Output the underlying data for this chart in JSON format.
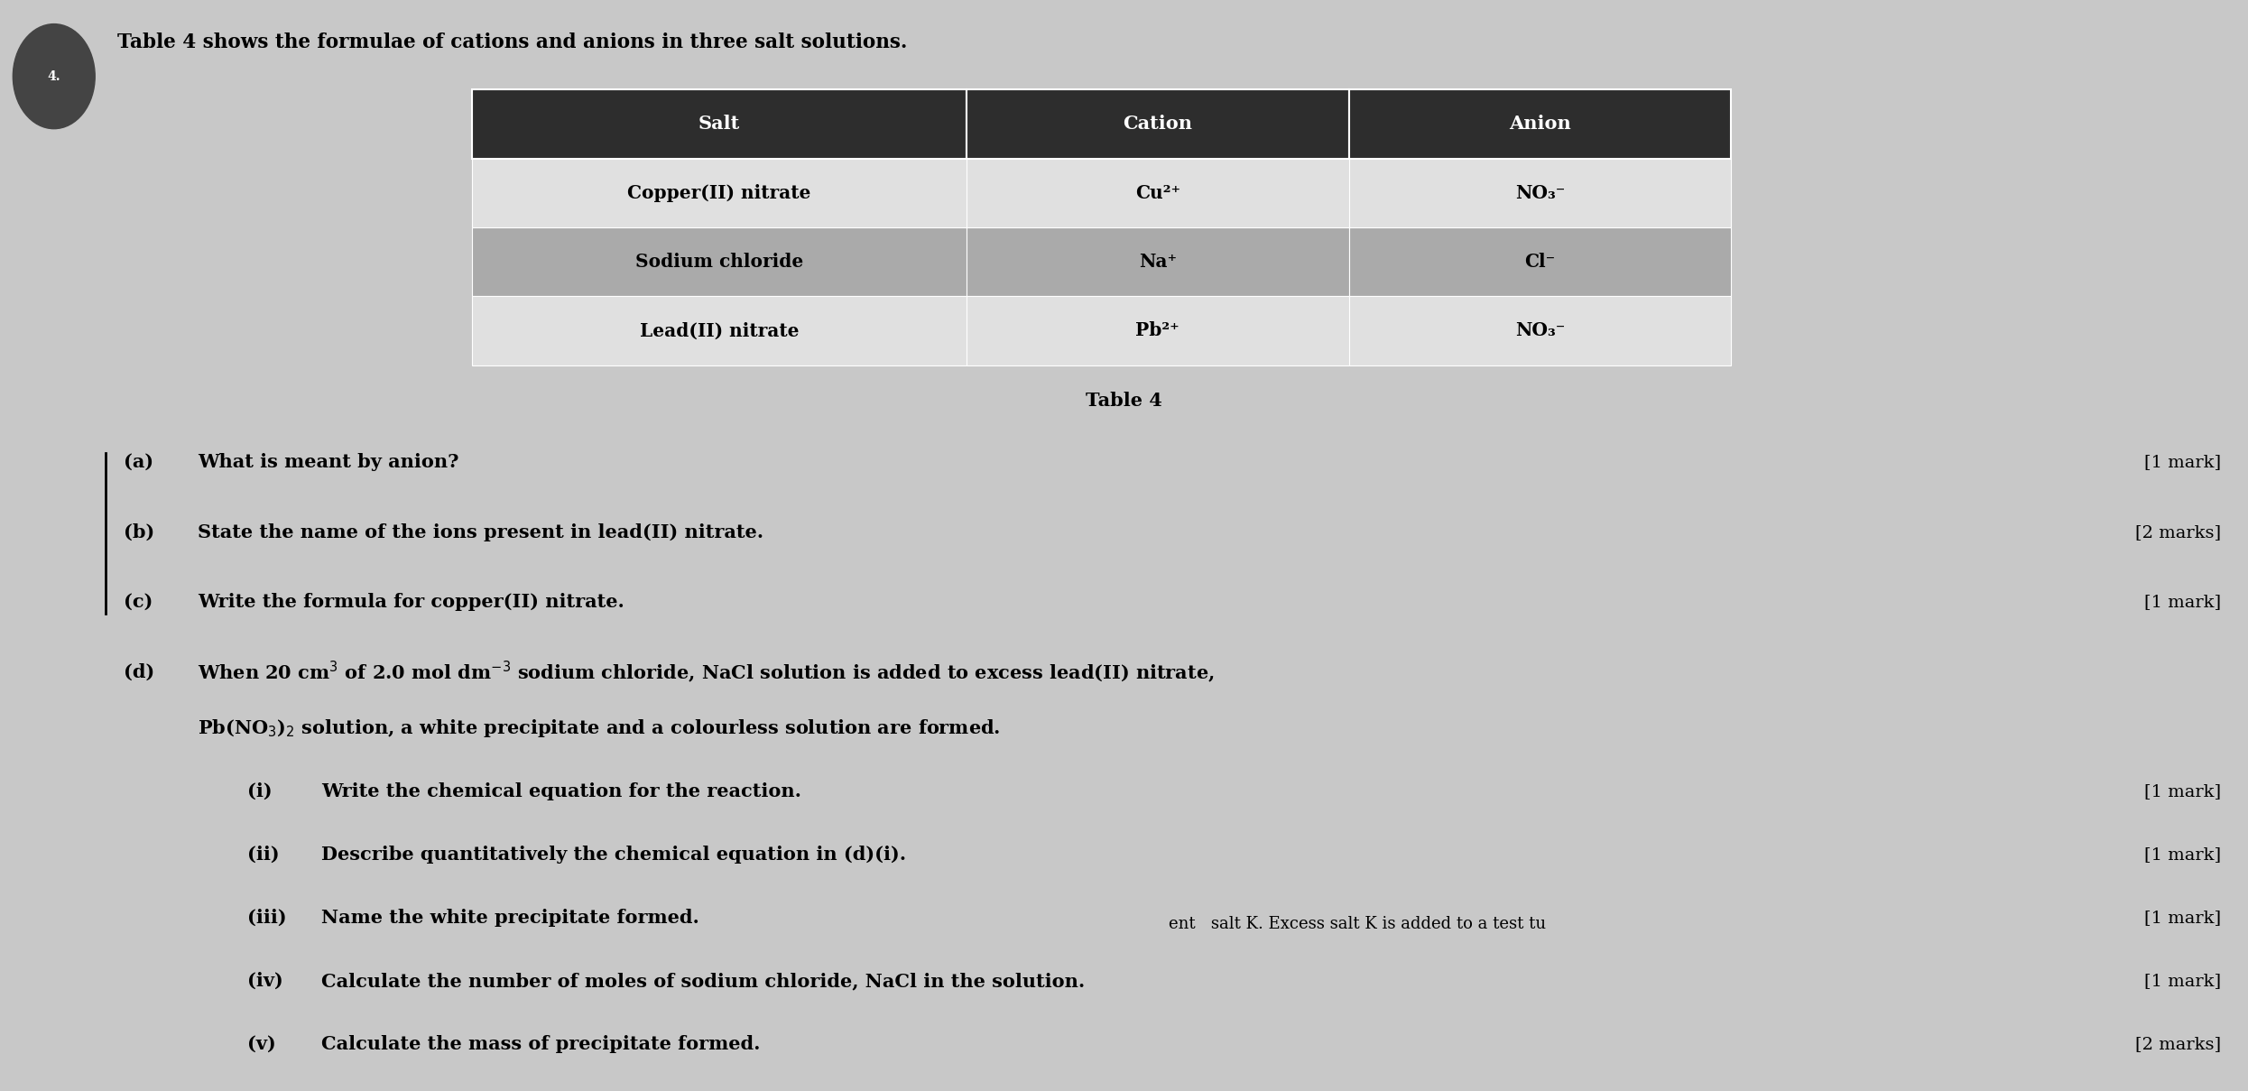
{
  "bg_color": "#c8c8c8",
  "title_text": "Table 4 shows the formulae of cations and anions in three salt solutions.",
  "table": {
    "headers": [
      "Salt",
      "Cation",
      "Anion"
    ],
    "header_bg": "#2d2d2d",
    "header_color": "#ffffff",
    "rows": [
      {
        "salt": "Copper(II) nitrate",
        "cation": "Cu²⁺",
        "anion": "NO₃⁻",
        "bg": "#e0e0e0"
      },
      {
        "salt": "Sodium chloride",
        "cation": "Na⁺",
        "anion": "Cl⁻",
        "bg": "#aaaaaa"
      },
      {
        "salt": "Lead(II) nitrate",
        "cation": "Pb²⁺",
        "anion": "NO₃⁻",
        "bg": "#e0e0e0"
      }
    ],
    "caption": "Table 4"
  },
  "footer_text": "ent   salt K. Excess salt K is added to a test tu"
}
